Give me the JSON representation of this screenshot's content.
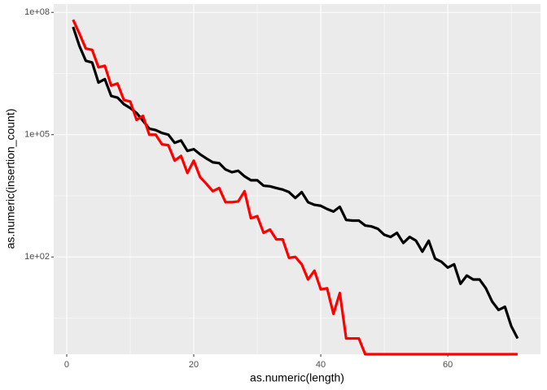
{
  "chart_data": {
    "type": "line",
    "x_label": "as.numeric(length)",
    "y_label": "as.numeric(insertion_count)",
    "x": [
      1,
      2,
      3,
      4,
      5,
      6,
      7,
      8,
      9,
      10,
      11,
      12,
      13,
      14,
      15,
      16,
      17,
      18,
      19,
      20,
      21,
      22,
      23,
      24,
      25,
      26,
      27,
      28,
      29,
      30,
      31,
      32,
      33,
      34,
      35,
      36,
      37,
      38,
      39,
      40,
      41,
      42,
      43,
      44,
      45,
      46,
      47,
      48,
      49,
      50,
      51,
      52,
      53,
      54,
      55,
      56,
      57,
      58,
      59,
      60,
      61,
      62,
      63,
      64,
      65,
      66,
      67,
      68,
      69,
      70,
      71
    ],
    "series": [
      {
        "color": "#000000",
        "values": [
          44000000,
          15000000,
          6500000,
          5900000,
          1900000,
          2300000,
          890000,
          810000,
          560000,
          450000,
          340000,
          220000,
          140000,
          130000,
          110000,
          100000,
          63000,
          72000,
          40000,
          44000,
          33000,
          26000,
          21000,
          20000,
          14000,
          12000,
          13000,
          9500,
          7600,
          7600,
          5600,
          5400,
          4900,
          4500,
          3900,
          2800,
          3900,
          2200,
          1900,
          1800,
          1500,
          1300,
          1700,
          810,
          780,
          780,
          590,
          560,
          490,
          350,
          310,
          390,
          220,
          310,
          250,
          135,
          250,
          91,
          76,
          55,
          66,
          22,
          35,
          28,
          28,
          17,
          8,
          5,
          6,
          2,
          1
        ]
      },
      {
        "color": "#ff0000",
        "values": [
          66000000,
          30000000,
          13000000,
          12000000,
          4500000,
          4900000,
          1600000,
          1800000,
          710000,
          650000,
          230000,
          290000,
          100000,
          100000,
          58000,
          55000,
          23000,
          30000,
          11500,
          23000,
          9100,
          6200,
          4100,
          4900,
          2200,
          2200,
          2300,
          4100,
          890,
          1000,
          390,
          470,
          270,
          270,
          95,
          100,
          66,
          28,
          46,
          16,
          17,
          4,
          13,
          1,
          1,
          1,
          0,
          0,
          0,
          0,
          0,
          0,
          0,
          0,
          0,
          0,
          0,
          0,
          0,
          0,
          0,
          0,
          0,
          0,
          0,
          0,
          0,
          0,
          0,
          0,
          0
        ]
      }
    ],
    "xlim": [
      -2.05,
      74.6
    ],
    "xticks": [
      0,
      20,
      40,
      60
    ],
    "ylim": [
      0.41,
      160000000
    ],
    "log_y": true,
    "yticks": [
      {
        "value": 100,
        "label": "1e+02"
      },
      {
        "value": 100000,
        "label": "1e+05"
      },
      {
        "value": 100000000,
        "label": "1e+08"
      }
    ],
    "grid": true
  }
}
